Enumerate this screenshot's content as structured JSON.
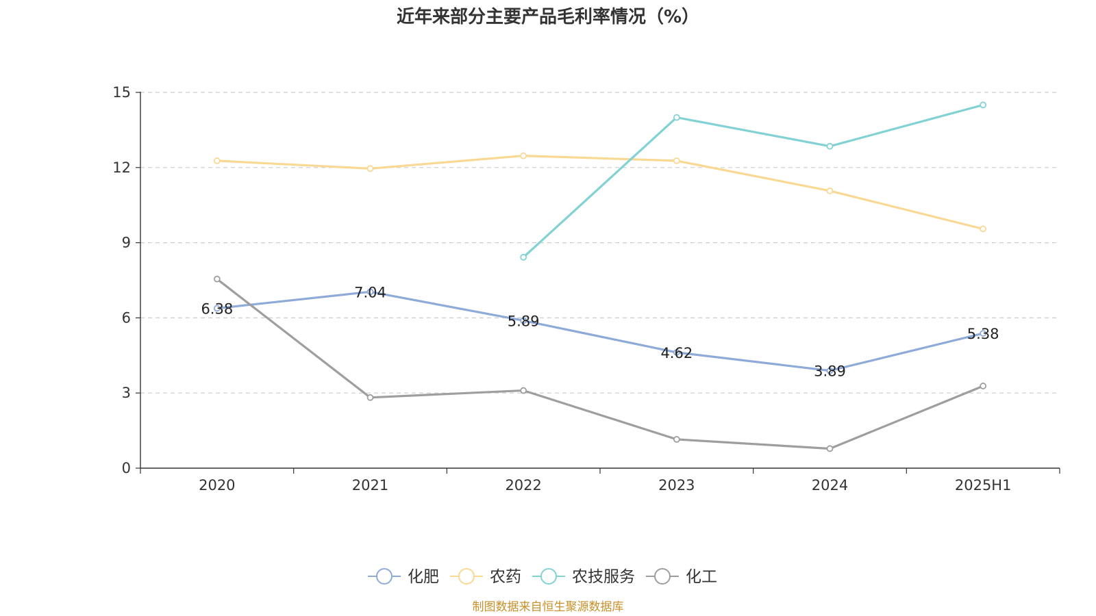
{
  "chart_data": {
    "type": "line",
    "title": "近年来部分主要产品毛利率情况（%）",
    "categories": [
      "2020",
      "2021",
      "2022",
      "2023",
      "2024",
      "2025H1"
    ],
    "ylim": [
      0,
      15
    ],
    "yticks": [
      0,
      3,
      6,
      9,
      12,
      15
    ],
    "grid": true,
    "legend_position": "bottom",
    "series": [
      {
        "name": "化肥",
        "color": "#8eaad8",
        "values": [
          6.38,
          7.04,
          5.89,
          4.62,
          3.89,
          5.38
        ],
        "show_labels": true
      },
      {
        "name": "农药",
        "color": "#f9d894",
        "values": [
          12.27,
          11.96,
          12.47,
          12.27,
          11.07,
          9.55
        ],
        "show_labels": false
      },
      {
        "name": "农技服务",
        "color": "#82d2d4",
        "values": [
          null,
          null,
          8.42,
          14.0,
          12.85,
          14.5
        ],
        "show_labels": false
      },
      {
        "name": "化工",
        "color": "#9e9e9e",
        "values": [
          7.55,
          2.82,
          3.1,
          1.15,
          0.78,
          3.28
        ],
        "show_labels": false
      }
    ]
  },
  "source": "制图数据来自恒生聚源数据库"
}
